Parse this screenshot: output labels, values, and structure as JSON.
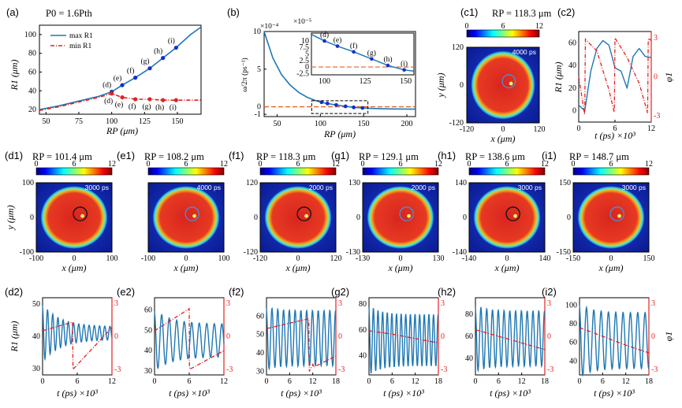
{
  "panel_labels": {
    "a": "(a)",
    "b": "(b)",
    "c1": "(c1)",
    "c2": "(c2)",
    "d1": "(d1)",
    "e1": "(e1)",
    "f1": "(f1)",
    "g1": "(g1)",
    "h1": "(h1)",
    "i1": "(i1)",
    "d2": "(d2)",
    "e2": "(e2)",
    "f2": "(f2)",
    "g2": "(g2)",
    "h2": "(h2)",
    "i2": "(i2)"
  },
  "texts": {
    "a_power": "P0 = 1.6Pth",
    "a_legend_max": "max R1",
    "a_legend_min": "min R1",
    "a_xlabel": "RP (μm)",
    "a_ylabel": "R1 (μm)",
    "b_xlabel": "RP (μm)",
    "b_ylabel": "ω/2π (ps⁻¹)",
    "b_exp": "×10⁻⁴",
    "b_inset_exp": "×10⁻⁵",
    "c1_title": "RP = 118.3 μm",
    "c1_time": "4000 ps",
    "c2_xlabel": "t (ps) ×10³",
    "c2_ylabel_left": "R1 (μm)",
    "c2_ylabel_right": "φ1",
    "map_xlabel": "x (μm)",
    "map_ylabel": "y (μm)",
    "ts_xlabel": "t (ps) ×10³",
    "ts_ylabel_left": "R1 (μm)",
    "ts_ylabel_right": "φ1"
  },
  "colorbar": {
    "ticks": [
      "0",
      "6",
      "12"
    ]
  },
  "maps": [
    {
      "id": "d1",
      "title": "RP = 101.4 μm",
      "time": "3000 ps",
      "xticks": [
        "-100",
        "0",
        "100"
      ],
      "yticks": [
        "100",
        "0",
        "-100"
      ]
    },
    {
      "id": "e1",
      "title": "RP = 108.2 μm",
      "time": "4000 ps",
      "xticks": [
        "-100",
        "0",
        "100"
      ],
      "yticks": []
    },
    {
      "id": "f1",
      "title": "RP = 118.3 μm",
      "time": "2000 ps",
      "xticks": [
        "-120",
        "0",
        "120"
      ],
      "yticks": [
        "120",
        "0",
        "-120"
      ]
    },
    {
      "id": "g1",
      "title": "RP = 129.1 μm",
      "time": "2000 ps",
      "xticks": [
        "-130",
        "0",
        "130"
      ],
      "yticks": [
        "130",
        "0",
        "-130"
      ]
    },
    {
      "id": "h1",
      "title": "RP = 138.6 μm",
      "time": "3000 ps",
      "xticks": [
        "-140",
        "0",
        "140"
      ],
      "yticks": [
        "140",
        "0",
        "-140"
      ]
    },
    {
      "id": "i1",
      "title": "RP = 148.7 μm",
      "time": "3000 ps",
      "xticks": [
        "-150",
        "0",
        "150"
      ],
      "yticks": [
        "150",
        "0",
        "-150"
      ]
    }
  ],
  "c1_ticks": {
    "x": [
      "-120",
      "0",
      "120"
    ],
    "y": [
      "120",
      "0",
      "-120"
    ]
  },
  "chart_data": [
    {
      "id": "a",
      "type": "line",
      "xlabel": "RP (μm)",
      "ylabel": "R1 (μm)",
      "xlim": [
        45,
        168
      ],
      "ylim": [
        15,
        110
      ],
      "xticks": [
        50,
        75,
        100,
        125,
        150
      ],
      "yticks": [
        20,
        40,
        60,
        80,
        100
      ],
      "series": [
        {
          "name": "max R1",
          "color": "#1f77b4",
          "style": "solid",
          "x": [
            45,
            60,
            75,
            90,
            100,
            108,
            118,
            129,
            139,
            149,
            160,
            168
          ],
          "y": [
            20,
            24,
            29,
            34,
            39,
            46,
            54,
            64,
            75,
            86,
            100,
            108
          ]
        },
        {
          "name": "min R1",
          "color": "#e32020",
          "style": "dashdot",
          "x": [
            45,
            60,
            75,
            90,
            100,
            108,
            118,
            129,
            139,
            149,
            160,
            168
          ],
          "y": [
            19,
            23,
            28,
            33,
            37,
            33,
            31,
            31,
            30,
            30,
            30,
            30
          ]
        }
      ],
      "markers_max": {
        "x": [
          100,
          108,
          118,
          129,
          139,
          149
        ],
        "labels": [
          "(d)",
          "(e)",
          "(f)",
          "(g)",
          "(h)",
          "(i)"
        ]
      },
      "markers_min": {
        "x": [
          100,
          108,
          118,
          129,
          139,
          149
        ],
        "labels": [
          "(d)",
          "(e)",
          "(f)",
          "(g)",
          "(h)",
          "(i)"
        ]
      }
    },
    {
      "id": "b",
      "type": "line",
      "xlabel": "RP (μm)",
      "ylabel": "ω/2π (ps⁻¹)",
      "xlim": [
        35,
        210
      ],
      "ylim": [
        -1.3,
        10
      ],
      "xticks": [
        50,
        100,
        150,
        200
      ],
      "yticks": [
        -1,
        0,
        5,
        10
      ],
      "series": [
        {
          "name": "",
          "color": "#1f77b4",
          "x": [
            35,
            45,
            55,
            65,
            75,
            85,
            95,
            105,
            115,
            125,
            140,
            160,
            180,
            210
          ],
          "y": [
            10,
            6.5,
            4.3,
            2.9,
            1.9,
            1.25,
            0.8,
            0.5,
            0.3,
            0.12,
            -0.1,
            -0.22,
            -0.28,
            -0.32
          ]
        }
      ],
      "markers": {
        "x": [
          101.4,
          108.2,
          118.3,
          129.1,
          138.6,
          148.7
        ]
      },
      "inset": {
        "xlim": [
          92,
          155
        ],
        "ylim": [
          -3,
          13
        ],
        "xticks": [
          100,
          125,
          150
        ],
        "yticks": [
          -2.5,
          0,
          2.5,
          5,
          7.5,
          10
        ],
        "x": [
          92,
          100,
          108,
          118,
          129,
          139,
          149,
          155
        ],
        "y": [
          12.5,
          10,
          8,
          5.8,
          3.1,
          0.6,
          -1.1,
          -1.6
        ],
        "labels": [
          "(d)",
          "(e)",
          "(f)",
          "(g)",
          "(h)",
          "(i)"
        ]
      }
    },
    {
      "id": "c2",
      "type": "line",
      "xlim": [
        0,
        12
      ],
      "ylim_left": [
        -10,
        70
      ],
      "ylim_right": [
        -3.5,
        3.5
      ],
      "xticks": [
        0,
        6,
        12
      ],
      "yticks_left": [
        0,
        20,
        40,
        60
      ],
      "yticks_right": [
        -3,
        0,
        3
      ],
      "series": [
        {
          "name": "R1",
          "color": "#1f77b4",
          "x": [
            0,
            1,
            2,
            3,
            4,
            5,
            6,
            7,
            8,
            9,
            10,
            11,
            12
          ],
          "y": [
            5,
            0,
            35,
            55,
            62,
            58,
            38,
            35,
            20,
            48,
            55,
            48,
            47
          ]
        },
        {
          "name": "φ1",
          "color": "#e32020",
          "x": [
            0,
            1,
            1.1,
            3,
            5,
            5.9,
            6,
            8,
            10,
            11.4,
            11.5,
            12
          ],
          "y": [
            0,
            -3,
            2.9,
            2,
            -1,
            -2.8,
            3,
            1.5,
            -0.5,
            -2.8,
            3,
            2.8
          ]
        }
      ]
    },
    {
      "id": "d2",
      "type": "line",
      "xlim": [
        0,
        12
      ],
      "ylim_left": [
        28,
        52
      ],
      "ylim_right": [
        -3.5,
        3.5
      ],
      "xticks": [
        0,
        6,
        12
      ],
      "yticks_left": [
        30,
        40,
        50
      ],
      "yticks_right": [
        -3,
        0,
        3
      ],
      "osc": {
        "mean": 41,
        "amp0": 9,
        "amp1": 2,
        "period": 0.9
      },
      "phase": {
        "x": [
          0,
          5.2,
          5.25,
          12
        ],
        "y": [
          0.5,
          1.3,
          -3,
          0.8
        ]
      }
    },
    {
      "id": "e2",
      "type": "line",
      "xlim": [
        0,
        12
      ],
      "ylim_left": [
        28,
        66
      ],
      "ylim_right": [
        -3.5,
        3.5
      ],
      "xticks": [
        0,
        6,
        12
      ],
      "yticks_left": [
        30,
        40,
        50,
        60
      ],
      "yticks_right": [
        -3,
        0,
        3
      ],
      "osc": {
        "mean": 45,
        "amp0": 15,
        "amp1": 8,
        "period": 1.3
      },
      "phase": {
        "x": [
          0,
          6,
          6.05,
          12
        ],
        "y": [
          0.5,
          2.5,
          -3,
          -1.3
        ]
      }
    },
    {
      "id": "f2",
      "type": "line",
      "xlim": [
        0,
        18
      ],
      "ylim_left": [
        28,
        70
      ],
      "ylim_right": [
        -3.5,
        3.5
      ],
      "xticks": [
        0,
        6,
        12,
        18
      ],
      "yticks_left": [
        30,
        40,
        50,
        60
      ],
      "yticks_right": [
        -3,
        0,
        3
      ],
      "osc": {
        "mean": 48,
        "amp0": 17,
        "amp1": 15,
        "period": 1.5
      },
      "phase": {
        "x": [
          0,
          11,
          11.05,
          12.1,
          12.15,
          18
        ],
        "y": [
          0.7,
          1.6,
          -3.2,
          -2.5,
          -2.8,
          -1.8
        ]
      }
    },
    {
      "id": "g2",
      "type": "line",
      "xlim": [
        0,
        18
      ],
      "ylim_left": [
        25,
        85
      ],
      "ylim_right": [
        -3.5,
        3.5
      ],
      "xticks": [
        0,
        6,
        12,
        18
      ],
      "yticks_left": [
        40,
        60,
        80
      ],
      "yticks_right": [
        -3,
        0,
        3
      ],
      "osc": {
        "mean": 52,
        "amp0": 27,
        "amp1": 20,
        "period": 1.2
      },
      "phase": {
        "x": [
          0,
          6,
          12,
          18
        ],
        "y": [
          0.5,
          0.2,
          -0.2,
          -0.6
        ]
      }
    },
    {
      "id": "h2",
      "type": "line",
      "xlim": [
        0,
        18
      ],
      "ylim_left": [
        25,
        95
      ],
      "ylim_right": [
        -3.5,
        3.5
      ],
      "xticks": [
        0,
        6,
        12,
        18
      ],
      "yticks_left": [
        40,
        60,
        80
      ],
      "yticks_right": [
        -3,
        0,
        3
      ],
      "osc": {
        "mean": 58,
        "amp0": 30,
        "amp1": 25,
        "period": 1.5
      },
      "phase": {
        "x": [
          0,
          6,
          12,
          18
        ],
        "y": [
          0.6,
          0,
          -0.6,
          -1.2
        ]
      }
    },
    {
      "id": "i2",
      "type": "line",
      "xlim": [
        0,
        18
      ],
      "ylim_left": [
        25,
        108
      ],
      "ylim_right": [
        -3.5,
        3.5
      ],
      "xticks": [
        0,
        6,
        12,
        18
      ],
      "yticks_left": [
        40,
        60,
        80,
        100
      ],
      "yticks_right": [
        -3,
        0,
        3
      ],
      "osc": {
        "mean": 62,
        "amp0": 40,
        "amp1": 30,
        "period": 1.9
      },
      "phase": {
        "x": [
          0,
          6,
          12,
          18
        ],
        "y": [
          0.8,
          0,
          -0.8,
          -1.5
        ]
      }
    }
  ]
}
